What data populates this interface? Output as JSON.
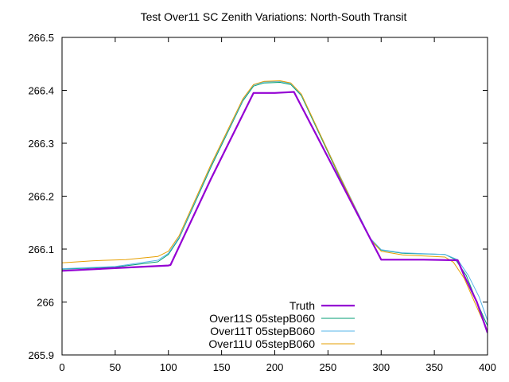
{
  "chart_data": {
    "type": "line",
    "title": "Test Over11 SC Zenith Variations: North-South Transit",
    "xlabel": "",
    "ylabel": "",
    "xlim": [
      0,
      400
    ],
    "ylim": [
      265.9,
      266.5
    ],
    "x_ticks": [
      "0",
      "50",
      "100",
      "150",
      "200",
      "250",
      "300",
      "350",
      "400"
    ],
    "y_ticks": [
      "265.9",
      "266",
      "266.1",
      "266.2",
      "266.3",
      "266.4",
      "266.5"
    ],
    "grid": false,
    "legend_position": "bottom-center",
    "series": [
      {
        "name": "Truth",
        "color": "#9400d3",
        "bold": true,
        "points": [
          [
            0,
            266.059
          ],
          [
            50,
            266.064
          ],
          [
            100,
            266.069
          ],
          [
            102,
            266.07
          ],
          [
            140,
            266.233
          ],
          [
            180,
            266.395
          ],
          [
            200,
            266.395
          ],
          [
            218,
            266.397
          ],
          [
            300,
            266.08
          ],
          [
            340,
            266.08
          ],
          [
            372,
            266.079
          ],
          [
            378,
            266.05
          ],
          [
            390,
            266.0
          ],
          [
            400,
            265.942
          ]
        ]
      },
      {
        "name": "Over11S 05stepB060",
        "color": "#009e73",
        "bold": false,
        "points": [
          [
            0,
            266.062
          ],
          [
            50,
            266.066
          ],
          [
            90,
            266.076
          ],
          [
            100,
            266.09
          ],
          [
            110,
            266.12
          ],
          [
            140,
            266.255
          ],
          [
            170,
            266.38
          ],
          [
            180,
            266.408
          ],
          [
            190,
            266.414
          ],
          [
            205,
            266.415
          ],
          [
            215,
            266.411
          ],
          [
            225,
            266.39
          ],
          [
            260,
            266.24
          ],
          [
            290,
            266.118
          ],
          [
            300,
            266.098
          ],
          [
            320,
            266.092
          ],
          [
            360,
            266.09
          ],
          [
            370,
            266.08
          ],
          [
            380,
            266.05
          ],
          [
            390,
            266.0
          ],
          [
            400,
            265.955
          ]
        ]
      },
      {
        "name": "Over11T 05stepB060",
        "color": "#56b4e9",
        "bold": false,
        "points": [
          [
            0,
            266.063
          ],
          [
            50,
            266.067
          ],
          [
            90,
            266.079
          ],
          [
            100,
            266.092
          ],
          [
            110,
            266.122
          ],
          [
            140,
            266.258
          ],
          [
            170,
            266.382
          ],
          [
            180,
            266.41
          ],
          [
            190,
            266.416
          ],
          [
            205,
            266.417
          ],
          [
            215,
            266.413
          ],
          [
            225,
            266.392
          ],
          [
            260,
            266.243
          ],
          [
            290,
            266.12
          ],
          [
            300,
            266.099
          ],
          [
            320,
            266.093
          ],
          [
            360,
            266.09
          ],
          [
            372,
            266.08
          ],
          [
            382,
            266.05
          ],
          [
            392,
            266.01
          ],
          [
            400,
            265.965
          ]
        ]
      },
      {
        "name": "Over11U 05stepB060",
        "color": "#e69f00",
        "bold": false,
        "points": [
          [
            0,
            266.074
          ],
          [
            30,
            266.078
          ],
          [
            60,
            266.08
          ],
          [
            90,
            266.086
          ],
          [
            100,
            266.096
          ],
          [
            110,
            266.125
          ],
          [
            140,
            266.26
          ],
          [
            170,
            266.384
          ],
          [
            180,
            266.411
          ],
          [
            190,
            266.417
          ],
          [
            205,
            266.418
          ],
          [
            215,
            266.414
          ],
          [
            225,
            266.393
          ],
          [
            260,
            266.242
          ],
          [
            290,
            266.118
          ],
          [
            300,
            266.096
          ],
          [
            320,
            266.089
          ],
          [
            360,
            266.085
          ],
          [
            368,
            266.075
          ],
          [
            378,
            266.045
          ],
          [
            390,
            265.99
          ],
          [
            400,
            265.945
          ]
        ]
      }
    ]
  }
}
